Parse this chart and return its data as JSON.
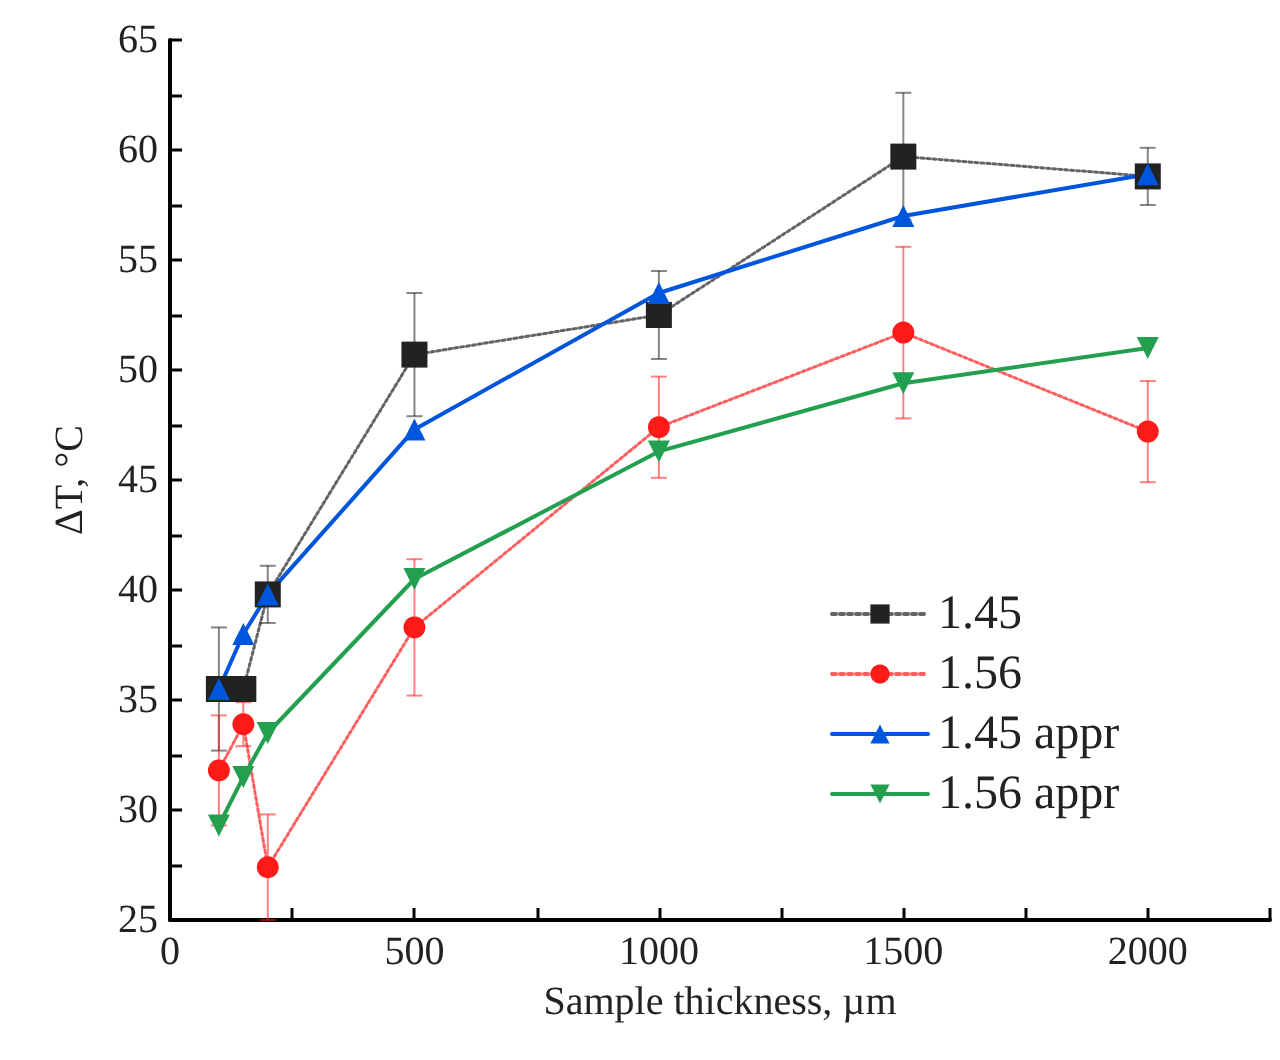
{
  "chart_data": {
    "type": "line",
    "xlabel": "Sample thickness, µm",
    "ylabel": "ΔT, °C",
    "x": [
      100,
      150,
      200,
      500,
      1000,
      1500,
      2000
    ],
    "xlim": [
      0,
      2250
    ],
    "xticks": [
      0,
      {
        "value": 250,
        "label": null
      },
      500,
      {
        "value": 750,
        "label": null
      },
      1000,
      {
        "value": 1250,
        "label": null
      },
      1500,
      {
        "value": 1750,
        "label": null
      },
      2000,
      {
        "value": 2250,
        "label": null
      }
    ],
    "ylim": [
      25,
      65
    ],
    "yticks": [
      25,
      {
        "value": 27.5,
        "label": null
      },
      30,
      {
        "value": 32.5,
        "label": null
      },
      35,
      {
        "value": 37.5,
        "label": null
      },
      40,
      {
        "value": 42.5,
        "label": null
      },
      45,
      {
        "value": 47.5,
        "label": null
      },
      50,
      {
        "value": 52.5,
        "label": null
      },
      55,
      {
        "value": 57.5,
        "label": null
      },
      60,
      {
        "value": 62.5,
        "label": null
      },
      65
    ],
    "grid": false,
    "legend": "right",
    "series": [
      {
        "name": "1.45",
        "color": "#222222",
        "marker": "square",
        "line_style": "dotted",
        "values": [
          35.5,
          35.5,
          39.8,
          50.7,
          52.5,
          59.7,
          58.8
        ],
        "errors": [
          2.8,
          null,
          1.3,
          2.8,
          2,
          2.9,
          1.3
        ]
      },
      {
        "name": "1.56",
        "color": "#ff1a1a",
        "marker": "circle",
        "line_style": "dotted",
        "values": [
          31.8,
          33.9,
          27.4,
          38.3,
          47.4,
          51.7,
          47.2
        ],
        "errors": [
          2.5,
          1,
          2.4,
          3.1,
          2.3,
          3.9,
          2.3
        ]
      },
      {
        "name": "1.45 appr",
        "color": "#0055dd",
        "marker": "triangle",
        "line_style": "solid",
        "values": [
          35.5,
          38.0,
          39.8,
          47.3,
          53.5,
          57.0,
          58.9
        ]
      },
      {
        "name": "1.56 appr",
        "color": "#22a050",
        "marker": "triangle-down",
        "line_style": "solid",
        "values": [
          29.3,
          31.5,
          33.5,
          40.5,
          46.3,
          49.4,
          51.0
        ]
      }
    ]
  }
}
